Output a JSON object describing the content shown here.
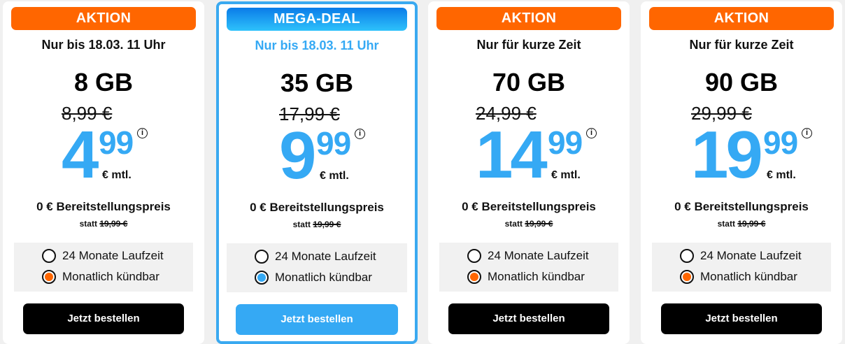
{
  "colors": {
    "aktion": "#ff6600",
    "mega_deal": "#1aa0f5",
    "accent_blue": "#35a9f4",
    "radio_orange": "#ff6600"
  },
  "cards": [
    {
      "badge": "AKTION",
      "subtitle": "Nur bis 18.03. 11 Uhr",
      "data": "8 GB",
      "old_price": "8,99 €",
      "price_main": "4",
      "price_cents": "99",
      "unit": "€ mtl.",
      "setup": "0 € Bereitstellungspreis",
      "statt_label": "statt",
      "statt_price": "19,99 €",
      "options": [
        "24 Monate Laufzeit",
        "Monatlich kündbar"
      ],
      "selected": 1,
      "button": "Jetzt bestellen",
      "info_icon": "i"
    },
    {
      "badge": "MEGA-DEAL",
      "subtitle": "Nur bis 18.03. 11 Uhr",
      "data": "35 GB",
      "old_price": "17,99 €",
      "price_main": "9",
      "price_cents": "99",
      "unit": "€ mtl.",
      "setup": "0 € Bereitstellungspreis",
      "statt_label": "statt",
      "statt_price": "19,99 €",
      "options": [
        "24 Monate Laufzeit",
        "Monatlich kündbar"
      ],
      "selected": 1,
      "button": "Jetzt bestellen",
      "info_icon": "i"
    },
    {
      "badge": "AKTION",
      "subtitle": "Nur für kurze Zeit",
      "data": "70 GB",
      "old_price": "24,99 €",
      "price_main": "14",
      "price_cents": "99",
      "unit": "€ mtl.",
      "setup": "0 € Bereitstellungspreis",
      "statt_label": "statt",
      "statt_price": "19,99 €",
      "options": [
        "24 Monate Laufzeit",
        "Monatlich kündbar"
      ],
      "selected": 1,
      "button": "Jetzt bestellen",
      "info_icon": "i"
    },
    {
      "badge": "AKTION",
      "subtitle": "Nur für kurze Zeit",
      "data": "90 GB",
      "old_price": "29,99 €",
      "price_main": "19",
      "price_cents": "99",
      "unit": "€ mtl.",
      "setup": "0 € Bereitstellungspreis",
      "statt_label": "statt",
      "statt_price": "19,99 €",
      "options": [
        "24 Monate Laufzeit",
        "Monatlich kündbar"
      ],
      "selected": 1,
      "button": "Jetzt bestellen",
      "info_icon": "i"
    }
  ]
}
